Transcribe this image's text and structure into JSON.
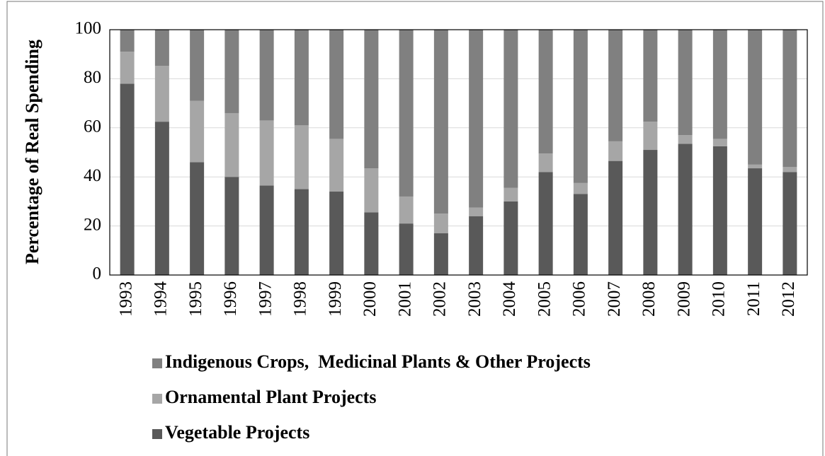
{
  "chart_data": {
    "type": "stacked_bar",
    "ylabel": "Percentage of Real Spending",
    "categories": [
      "1993",
      "1994",
      "1995",
      "1996",
      "1997",
      "1998",
      "1999",
      "2000",
      "2001",
      "2002",
      "2003",
      "2004",
      "2005",
      "2006",
      "2007",
      "2008",
      "2009",
      "2010",
      "2011",
      "2012"
    ],
    "series": [
      {
        "name": "Vegetable Projects",
        "color": "#595959",
        "values": [
          78,
          62.5,
          46,
          40,
          36.5,
          35,
          34,
          25.5,
          21,
          17,
          24,
          30,
          42,
          33,
          46.5,
          51,
          53.5,
          52.5,
          43.5,
          42
        ]
      },
      {
        "name": "Ornamental Plant Projects",
        "color": "#a6a6a6",
        "values": [
          13,
          22.8,
          25,
          26,
          26.5,
          26,
          21.5,
          18,
          11,
          8,
          3.5,
          5.5,
          7.5,
          4.5,
          8,
          11.5,
          3.5,
          3,
          1.5,
          2
        ]
      },
      {
        "name": "Indigenous Crops,  Medicinal Plants & Other Projects",
        "color": "#808080",
        "values": [
          9,
          14.7,
          29,
          34,
          37,
          39,
          44.5,
          56.5,
          68,
          75,
          72.5,
          64.5,
          50.5,
          62.5,
          45.5,
          37.5,
          43,
          44.5,
          55,
          56
        ]
      }
    ],
    "ylim": [
      0,
      100
    ],
    "yticks": [
      0,
      20,
      40,
      60,
      80,
      100
    ],
    "grid": true
  }
}
